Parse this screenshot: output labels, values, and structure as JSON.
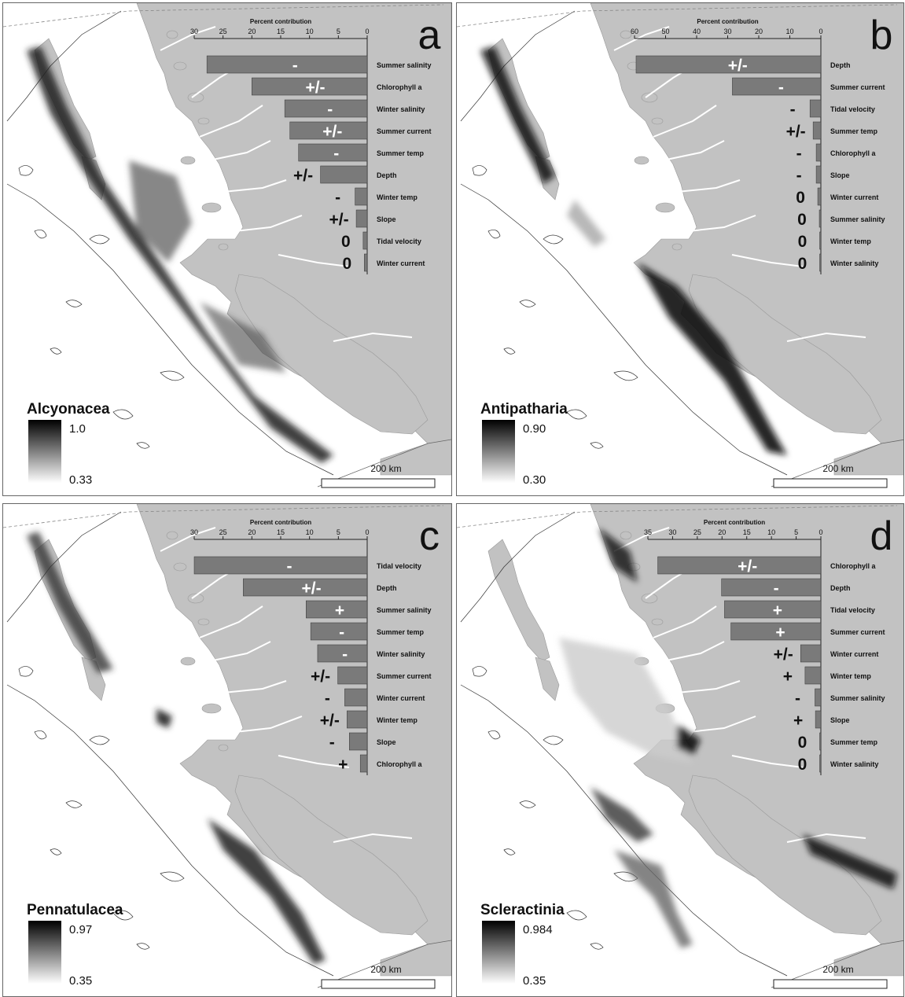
{
  "axis_title": "Percent contribution",
  "scale_label": "200 km",
  "panels": [
    {
      "letter": "a",
      "taxon": "Alcyonacea",
      "legend_high": "1.0",
      "legend_low": "0.33",
      "axis_max": 30,
      "ticks": [
        30,
        25,
        20,
        15,
        10,
        5,
        0
      ],
      "bars": [
        {
          "label": "Summer salinity",
          "value": 27.8,
          "sign": "-"
        },
        {
          "label": "Chlorophyll a",
          "value": 20.0,
          "sign": "+/-"
        },
        {
          "label": "Winter salinity",
          "value": 14.3,
          "sign": "-"
        },
        {
          "label": "Summer current",
          "value": 13.4,
          "sign": "+/-"
        },
        {
          "label": "Summer temp",
          "value": 11.9,
          "sign": "-"
        },
        {
          "label": "Depth",
          "value": 8.1,
          "sign": "+/-"
        },
        {
          "label": "Winter temp",
          "value": 2.1,
          "sign": "-"
        },
        {
          "label": "Slope",
          "value": 1.9,
          "sign": "+/-"
        },
        {
          "label": "Tidal velocity",
          "value": 0.7,
          "sign": "0"
        },
        {
          "label": "Winter current",
          "value": 0.5,
          "sign": "0"
        }
      ]
    },
    {
      "letter": "b",
      "taxon": "Antipatharia",
      "legend_high": "0.90",
      "legend_low": "0.30",
      "axis_max": 60,
      "ticks": [
        60,
        50,
        40,
        30,
        20,
        10,
        0
      ],
      "bars": [
        {
          "label": "Depth",
          "value": 59.5,
          "sign": "+/-"
        },
        {
          "label": "Summer current",
          "value": 28.5,
          "sign": "-"
        },
        {
          "label": "Tidal velocity",
          "value": 3.5,
          "sign": "-"
        },
        {
          "label": "Summer temp",
          "value": 2.5,
          "sign": "+/-"
        },
        {
          "label": "Chlorophyll a",
          "value": 1.5,
          "sign": "-"
        },
        {
          "label": "Slope",
          "value": 1.5,
          "sign": "-"
        },
        {
          "label": "Winter current",
          "value": 1.0,
          "sign": "0"
        },
        {
          "label": "Summer salinity",
          "value": 0.5,
          "sign": "0"
        },
        {
          "label": "Winter temp",
          "value": 0.3,
          "sign": "0"
        },
        {
          "label": "Winter salinity",
          "value": 0.2,
          "sign": "0"
        }
      ]
    },
    {
      "letter": "c",
      "taxon": "Pennatulacea",
      "legend_high": "0.97",
      "legend_low": "0.35",
      "axis_max": 30,
      "ticks": [
        30,
        25,
        20,
        15,
        10,
        5,
        0
      ],
      "bars": [
        {
          "label": "Tidal velocity",
          "value": 30.0,
          "sign": "-"
        },
        {
          "label": "Depth",
          "value": 21.5,
          "sign": "+/-"
        },
        {
          "label": "Summer salinity",
          "value": 10.6,
          "sign": "+"
        },
        {
          "label": "Summer temp",
          "value": 9.8,
          "sign": "-"
        },
        {
          "label": "Winter salinity",
          "value": 8.6,
          "sign": "-"
        },
        {
          "label": "Summer current",
          "value": 5.1,
          "sign": "+/-"
        },
        {
          "label": "Winter current",
          "value": 3.9,
          "sign": "-"
        },
        {
          "label": "Winter temp",
          "value": 3.5,
          "sign": "+/-"
        },
        {
          "label": "Slope",
          "value": 3.1,
          "sign": "-"
        },
        {
          "label": "Chlorophyll a",
          "value": 1.2,
          "sign": "+"
        }
      ]
    },
    {
      "letter": "d",
      "taxon": "Scleractinia",
      "legend_high": "0.984",
      "legend_low": "0.35",
      "axis_max": 35,
      "ticks": [
        35,
        30,
        25,
        20,
        15,
        10,
        5,
        0
      ],
      "bars": [
        {
          "label": "Chlorophyll a",
          "value": 33.0,
          "sign": "+/-"
        },
        {
          "label": "Depth",
          "value": 20.1,
          "sign": "-"
        },
        {
          "label": "Tidal velocity",
          "value": 19.5,
          "sign": "+"
        },
        {
          "label": "Summer current",
          "value": 18.2,
          "sign": "+"
        },
        {
          "label": "Winter current",
          "value": 4.1,
          "sign": "+/-"
        },
        {
          "label": "Winter temp",
          "value": 3.2,
          "sign": "+"
        },
        {
          "label": "Summer salinity",
          "value": 1.2,
          "sign": "-"
        },
        {
          "label": "Slope",
          "value": 1.1,
          "sign": "+"
        },
        {
          "label": "Summer temp",
          "value": 0.2,
          "sign": "0"
        },
        {
          "label": "Winter salinity",
          "value": 0.1,
          "sign": "0"
        }
      ]
    }
  ],
  "chart_data": [
    {
      "type": "bar",
      "title": "Percent contribution",
      "categories": [
        "Summer salinity",
        "Chlorophyll a",
        "Winter salinity",
        "Summer current",
        "Summer temp",
        "Depth",
        "Winter temp",
        "Slope",
        "Tidal velocity",
        "Winter current"
      ],
      "values": [
        27.8,
        20.0,
        14.3,
        13.4,
        11.9,
        8.1,
        2.1,
        1.9,
        0.7,
        0.5
      ],
      "xlim": [
        30,
        0
      ]
    },
    {
      "type": "bar",
      "title": "Percent contribution",
      "categories": [
        "Depth",
        "Summer current",
        "Tidal velocity",
        "Summer temp",
        "Chlorophyll a",
        "Slope",
        "Winter current",
        "Summer salinity",
        "Winter temp",
        "Winter salinity"
      ],
      "values": [
        59.5,
        28.5,
        3.5,
        2.5,
        1.5,
        1.5,
        1.0,
        0.5,
        0.3,
        0.2
      ],
      "xlim": [
        60,
        0
      ]
    },
    {
      "type": "bar",
      "title": "Percent contribution",
      "categories": [
        "Tidal velocity",
        "Depth",
        "Summer salinity",
        "Summer temp",
        "Winter salinity",
        "Summer current",
        "Winter current",
        "Winter temp",
        "Slope",
        "Chlorophyll a"
      ],
      "values": [
        30.0,
        21.5,
        10.6,
        9.8,
        8.6,
        5.1,
        3.9,
        3.5,
        3.1,
        1.2
      ],
      "xlim": [
        30,
        0
      ]
    },
    {
      "type": "bar",
      "title": "Percent contribution",
      "categories": [
        "Chlorophyll a",
        "Depth",
        "Tidal velocity",
        "Summer current",
        "Winter current",
        "Winter temp",
        "Summer salinity",
        "Slope",
        "Summer temp",
        "Winter salinity"
      ],
      "values": [
        33.0,
        20.1,
        19.5,
        18.2,
        4.1,
        3.2,
        1.2,
        1.1,
        0.2,
        0.1
      ],
      "xlim": [
        35,
        0
      ]
    }
  ]
}
